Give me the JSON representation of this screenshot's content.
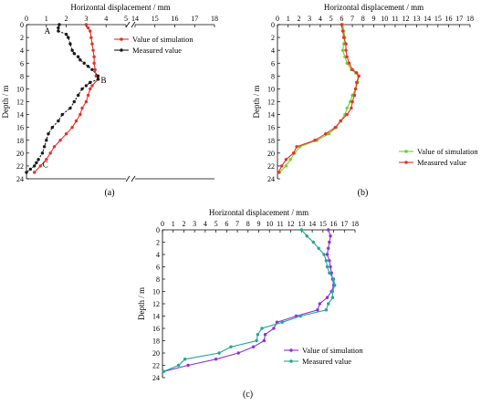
{
  "chart_data": [
    {
      "type": "line",
      "panel_label": "(a)",
      "xlabel": "Horizontal displacement / mm",
      "ylabel": "Depth / m",
      "x_ticks": [
        0,
        1,
        2,
        3,
        4,
        5,
        14,
        15,
        16,
        17,
        18
      ],
      "y_ticks": [
        0,
        2,
        4,
        6,
        8,
        10,
        12,
        14,
        16,
        18,
        20,
        22,
        24
      ],
      "y_inverted": true,
      "x_axis_break": [
        5,
        14
      ],
      "legend_position": "top-right",
      "grid": false,
      "series": [
        {
          "name": "Value of simulation",
          "color": "#e8302a",
          "marker": "circle",
          "points": [
            [
              3.0,
              0
            ],
            [
              3.1,
              0.5
            ],
            [
              3.2,
              1
            ],
            [
              3.25,
              2
            ],
            [
              3.3,
              3
            ],
            [
              3.35,
              4
            ],
            [
              3.4,
              5
            ],
            [
              3.4,
              6
            ],
            [
              3.45,
              7
            ],
            [
              3.5,
              8
            ],
            [
              3.6,
              8.5
            ],
            [
              3.3,
              9.5
            ],
            [
              3.2,
              10
            ],
            [
              3.1,
              11
            ],
            [
              3.0,
              12
            ],
            [
              2.8,
              13
            ],
            [
              2.7,
              14
            ],
            [
              2.5,
              15
            ],
            [
              2.3,
              16
            ],
            [
              2.0,
              17
            ],
            [
              1.7,
              18
            ],
            [
              1.4,
              19
            ],
            [
              1.2,
              20
            ],
            [
              1.0,
              21
            ],
            [
              0.7,
              22
            ],
            [
              0.4,
              23
            ]
          ]
        },
        {
          "name": "Measured value",
          "color": "#1a1a1a",
          "marker": "circle",
          "points": [
            [
              1.65,
              0
            ],
            [
              1.6,
              0.5
            ],
            [
              1.6,
              1
            ],
            [
              2.0,
              1.5
            ],
            [
              2.1,
              2
            ],
            [
              2.2,
              3
            ],
            [
              2.3,
              4
            ],
            [
              2.4,
              4.5
            ],
            [
              2.6,
              5
            ],
            [
              2.7,
              5.5
            ],
            [
              2.9,
              6
            ],
            [
              3.1,
              6.5
            ],
            [
              3.3,
              7
            ],
            [
              3.6,
              8
            ],
            [
              3.6,
              8.5
            ],
            [
              3.2,
              9
            ],
            [
              3.0,
              9.5
            ],
            [
              2.8,
              10
            ],
            [
              2.6,
              11
            ],
            [
              2.4,
              12
            ],
            [
              2.2,
              13
            ],
            [
              1.8,
              14
            ],
            [
              1.6,
              15
            ],
            [
              1.3,
              16
            ],
            [
              1.1,
              17
            ],
            [
              1.0,
              18
            ],
            [
              0.9,
              19
            ],
            [
              0.8,
              20
            ],
            [
              0.6,
              21
            ],
            [
              0.5,
              21.5
            ],
            [
              0.4,
              22
            ],
            [
              0.2,
              22.5
            ],
            [
              0.0,
              23
            ]
          ]
        }
      ],
      "annotations": [
        {
          "text": "A",
          "x": 1.6,
          "y": 1
        },
        {
          "text": "B",
          "x": 3.6,
          "y": 8.5
        },
        {
          "text": "C",
          "x": 0.4,
          "y": 22.2
        }
      ]
    },
    {
      "type": "line",
      "panel_label": "(b)",
      "xlabel": "Horizontal displacement / mm",
      "ylabel": "Depth / m",
      "x_ticks": [
        0,
        1,
        2,
        3,
        4,
        5,
        6,
        7,
        8,
        9,
        10,
        11,
        12,
        13,
        14,
        15,
        16,
        17,
        18
      ],
      "y_ticks": [
        0,
        2,
        4,
        6,
        8,
        10,
        12,
        14,
        16,
        18,
        20,
        22,
        24
      ],
      "y_inverted": true,
      "legend_position": "bottom-right",
      "grid": false,
      "series": [
        {
          "name": "Value of simulation",
          "color": "#6fd12a",
          "marker": "circle",
          "points": [
            [
              6.1,
              0
            ],
            [
              6.2,
              1
            ],
            [
              6.3,
              2
            ],
            [
              6.2,
              3
            ],
            [
              6.1,
              4
            ],
            [
              6.3,
              5
            ],
            [
              6.5,
              6
            ],
            [
              6.9,
              7
            ],
            [
              7.3,
              7.5
            ],
            [
              7.6,
              8
            ],
            [
              7.5,
              9
            ],
            [
              7.3,
              10
            ],
            [
              7.0,
              11
            ],
            [
              6.8,
              12
            ],
            [
              6.5,
              13
            ],
            [
              6.3,
              14
            ],
            [
              5.9,
              15
            ],
            [
              5.5,
              16
            ],
            [
              4.8,
              17
            ],
            [
              3.7,
              18
            ],
            [
              2.1,
              19
            ],
            [
              1.6,
              20
            ],
            [
              1.2,
              21
            ],
            [
              0.8,
              22
            ],
            [
              0.2,
              23
            ]
          ]
        },
        {
          "name": "Measured value",
          "color": "#e8302a",
          "marker": "circle",
          "points": [
            [
              6.0,
              0
            ],
            [
              6.1,
              1
            ],
            [
              6.2,
              2
            ],
            [
              6.4,
              3
            ],
            [
              6.4,
              4
            ],
            [
              6.5,
              5
            ],
            [
              6.7,
              6
            ],
            [
              7.0,
              7
            ],
            [
              7.4,
              7.5
            ],
            [
              7.6,
              8
            ],
            [
              7.4,
              9
            ],
            [
              7.3,
              10
            ],
            [
              7.2,
              11
            ],
            [
              7.0,
              12
            ],
            [
              6.9,
              13
            ],
            [
              6.5,
              14
            ],
            [
              5.9,
              15
            ],
            [
              5.4,
              16
            ],
            [
              4.5,
              17
            ],
            [
              3.5,
              18
            ],
            [
              1.8,
              19
            ],
            [
              1.5,
              20
            ],
            [
              0.8,
              21
            ],
            [
              0.4,
              22
            ],
            [
              0.1,
              23
            ]
          ]
        }
      ]
    },
    {
      "type": "line",
      "panel_label": "(c)",
      "xlabel": "Horizontal displacement / mm",
      "ylabel": "Depth / m",
      "x_ticks": [
        0,
        1,
        2,
        3,
        4,
        5,
        6,
        7,
        8,
        9,
        10,
        11,
        12,
        13,
        14,
        15,
        16,
        17,
        18
      ],
      "y_ticks": [
        0,
        2,
        4,
        6,
        8,
        10,
        12,
        14,
        16,
        18,
        20,
        22,
        24
      ],
      "y_inverted": true,
      "legend_position": "bottom-right",
      "grid": false,
      "series": [
        {
          "name": "Value of simulation",
          "color": "#8a35d6",
          "marker": "circle",
          "points": [
            [
              15.5,
              0
            ],
            [
              15.7,
              1
            ],
            [
              15.6,
              2
            ],
            [
              15.5,
              3
            ],
            [
              15.4,
              4
            ],
            [
              15.6,
              5
            ],
            [
              15.7,
              6
            ],
            [
              15.8,
              7
            ],
            [
              15.9,
              8
            ],
            [
              16.0,
              9
            ],
            [
              15.8,
              10
            ],
            [
              15.4,
              11
            ],
            [
              14.7,
              12
            ],
            [
              14.5,
              13
            ],
            [
              12.5,
              14
            ],
            [
              10.7,
              15
            ],
            [
              10.4,
              16
            ],
            [
              9.6,
              17
            ],
            [
              9.5,
              18
            ],
            [
              8.5,
              19
            ],
            [
              7.1,
              20
            ],
            [
              5.0,
              21
            ],
            [
              2.4,
              22
            ],
            [
              0.1,
              23
            ]
          ]
        },
        {
          "name": "Measured value",
          "color": "#1fa898",
          "marker": "circle",
          "points": [
            [
              13.0,
              0
            ],
            [
              13.5,
              1
            ],
            [
              14.1,
              2
            ],
            [
              14.6,
              3
            ],
            [
              15.1,
              4
            ],
            [
              15.3,
              5
            ],
            [
              15.4,
              6
            ],
            [
              15.6,
              7
            ],
            [
              16.0,
              8
            ],
            [
              16.1,
              9
            ],
            [
              15.9,
              10
            ],
            [
              15.9,
              11
            ],
            [
              15.5,
              12
            ],
            [
              15.3,
              13
            ],
            [
              12.9,
              14
            ],
            [
              11.2,
              15
            ],
            [
              9.3,
              16
            ],
            [
              8.9,
              17
            ],
            [
              8.8,
              18
            ],
            [
              6.4,
              19
            ],
            [
              5.3,
              20
            ],
            [
              2.1,
              21
            ],
            [
              1.5,
              22
            ],
            [
              0.1,
              23
            ]
          ]
        }
      ]
    }
  ]
}
